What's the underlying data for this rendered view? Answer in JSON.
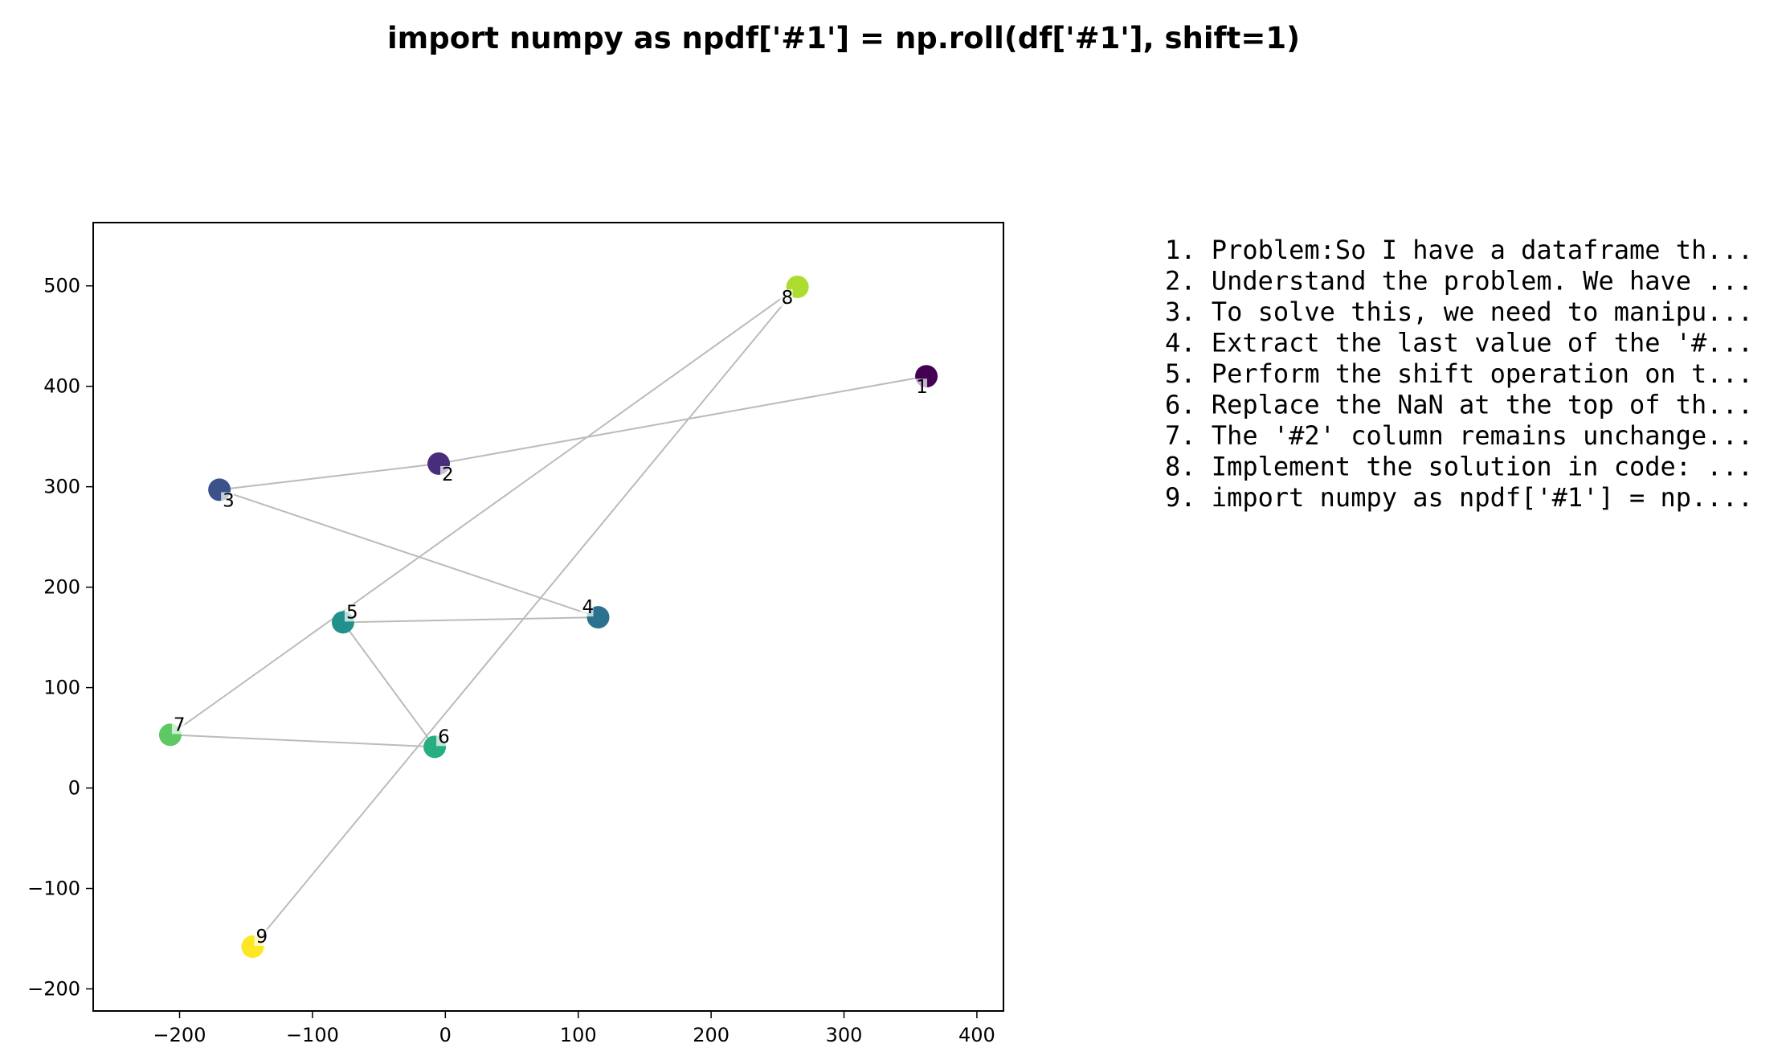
{
  "chart_data": {
    "type": "scatter",
    "title": "import numpy as npdf['#1'] = np.roll(df['#1'], shift=1)",
    "xlabel": "",
    "ylabel": "",
    "xlim": [
      -265,
      420
    ],
    "ylim": [
      -222,
      563
    ],
    "xticks": [
      -200,
      -100,
      0,
      100,
      200,
      300,
      400
    ],
    "yticks": [
      -200,
      -100,
      0,
      100,
      200,
      300,
      400,
      500
    ],
    "xtick_labels": [
      "−200",
      "−100",
      "0",
      "100",
      "200",
      "300",
      "400"
    ],
    "ytick_labels": [
      "−200",
      "−100",
      "0",
      "100",
      "200",
      "300",
      "400",
      "500"
    ],
    "grid": false,
    "points": [
      {
        "label": "1",
        "x": 362,
        "y": 410,
        "color": "#440154"
      },
      {
        "label": "2",
        "x": -5,
        "y": 323,
        "color": "#472d7b"
      },
      {
        "label": "3",
        "x": -170,
        "y": 297,
        "color": "#3b528b"
      },
      {
        "label": "4",
        "x": 115,
        "y": 170,
        "color": "#2c728e"
      },
      {
        "label": "5",
        "x": -77,
        "y": 165,
        "color": "#21918c"
      },
      {
        "label": "6",
        "x": -8,
        "y": 41,
        "color": "#28ae80"
      },
      {
        "label": "7",
        "x": -207,
        "y": 53,
        "color": "#5ec962"
      },
      {
        "label": "8",
        "x": 265,
        "y": 499,
        "color": "#addc30"
      },
      {
        "label": "9",
        "x": -145,
        "y": -158,
        "color": "#fde725"
      }
    ],
    "edges": [
      [
        "1",
        "2"
      ],
      [
        "2",
        "3"
      ],
      [
        "3",
        "4"
      ],
      [
        "4",
        "5"
      ],
      [
        "5",
        "6"
      ],
      [
        "6",
        "7"
      ],
      [
        "7",
        "8"
      ],
      [
        "8",
        "9"
      ]
    ],
    "edge_color": "#bbbbbb",
    "legend_position": "right",
    "legend_lines": [
      "1. Problem:So I have a dataframe th...",
      "2. Understand the problem. We have ...",
      "3. To solve this, we need to manipu...",
      "4. Extract the last value of the '#...",
      "5. Perform the shift operation on t...",
      "6. Replace the NaN at the top of th...",
      "7. The '#2' column remains unchange...",
      "8. Implement the solution in code: ...",
      "9. import numpy as npdf['#1'] = np...."
    ]
  }
}
